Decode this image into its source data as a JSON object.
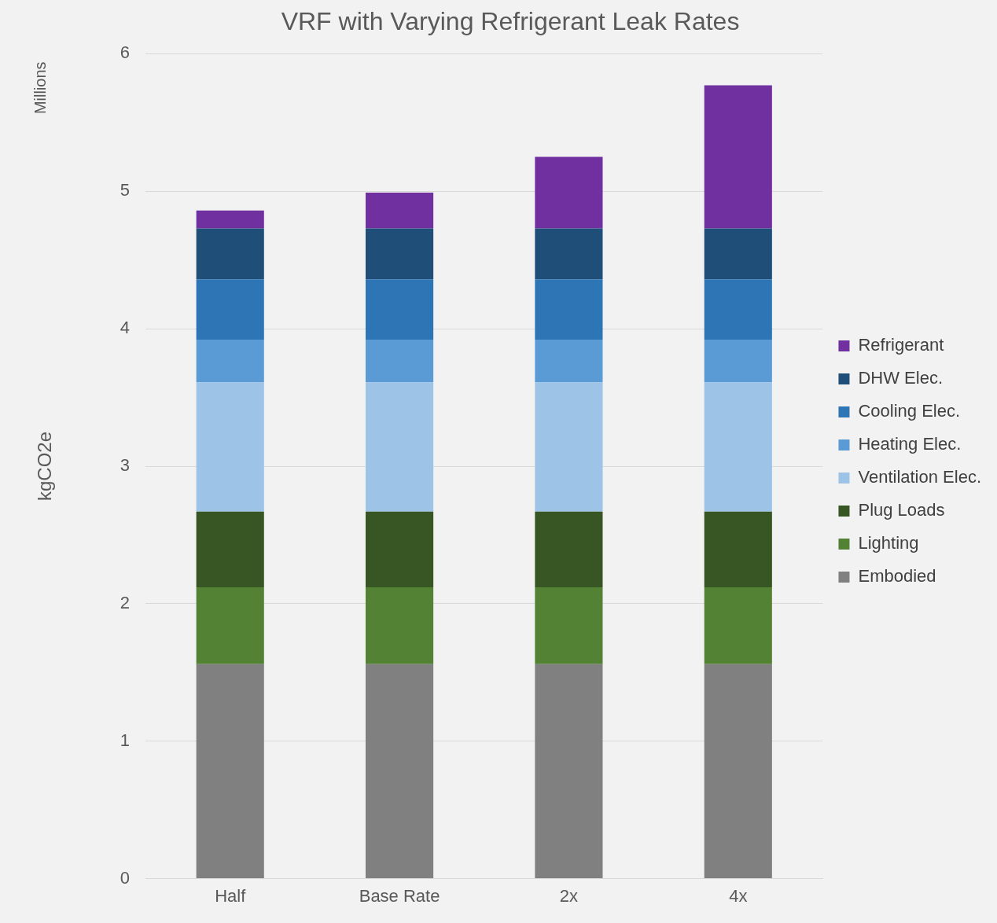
{
  "chart_data": {
    "type": "bar",
    "title": "VRF with Varying Refrigerant Leak Rates",
    "ylabel": "kgCO2e",
    "annotations": [
      "Millions"
    ],
    "categories": [
      "Half",
      "Base Rate",
      "2x",
      "4x"
    ],
    "stacked": true,
    "series": [
      {
        "name": "Embodied",
        "color": "#808080",
        "values": [
          1.56,
          1.56,
          1.56,
          1.56
        ]
      },
      {
        "name": "Lighting",
        "color": "#548235",
        "values": [
          0.56,
          0.56,
          0.56,
          0.56
        ]
      },
      {
        "name": "Plug Loads",
        "color": "#375623",
        "values": [
          0.55,
          0.55,
          0.55,
          0.55
        ]
      },
      {
        "name": "Ventilation Elec.",
        "color": "#9dc3e6",
        "values": [
          0.94,
          0.94,
          0.94,
          0.94
        ]
      },
      {
        "name": "Heating Elec.",
        "color": "#5b9bd5",
        "values": [
          0.31,
          0.31,
          0.31,
          0.31
        ]
      },
      {
        "name": "Cooling Elec.",
        "color": "#2e75b6",
        "values": [
          0.44,
          0.44,
          0.44,
          0.44
        ]
      },
      {
        "name": "DHW Elec.",
        "color": "#1f4e79",
        "values": [
          0.37,
          0.37,
          0.37,
          0.37
        ]
      },
      {
        "name": "Refrigerant",
        "color": "#7030a0",
        "values": [
          0.13,
          0.26,
          0.52,
          1.04
        ]
      }
    ],
    "ylim": [
      0,
      6
    ],
    "yticks": [
      0,
      1,
      2,
      3,
      4,
      5,
      6
    ],
    "grid": "y",
    "legend": "right"
  }
}
